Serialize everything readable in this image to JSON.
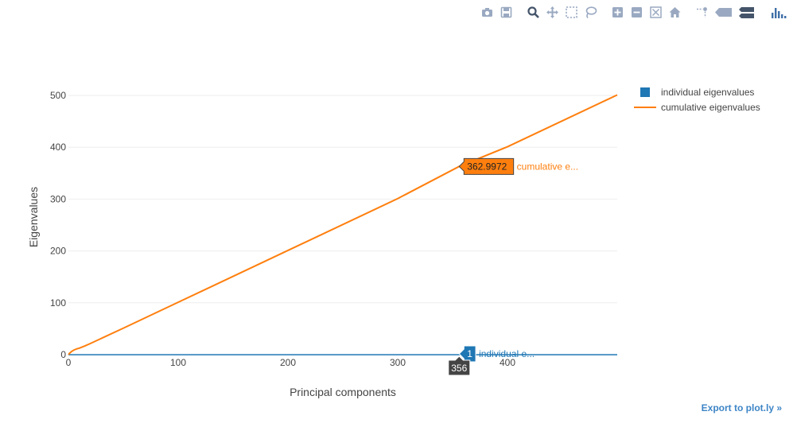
{
  "modebar": {
    "buttons": [
      {
        "name": "camera-icon",
        "group": 0
      },
      {
        "name": "save-icon",
        "group": 0
      },
      {
        "name": "zoom-icon",
        "group": 1
      },
      {
        "name": "pan-icon",
        "group": 1
      },
      {
        "name": "box-select-icon",
        "group": 1
      },
      {
        "name": "lasso-select-icon",
        "group": 1
      },
      {
        "name": "zoom-in-icon",
        "group": 2
      },
      {
        "name": "zoom-out-icon",
        "group": 2
      },
      {
        "name": "autoscale-icon",
        "group": 2
      },
      {
        "name": "home-icon",
        "group": 2
      },
      {
        "name": "spike-lines-icon",
        "group": 3
      },
      {
        "name": "hover-closest-icon",
        "group": 3
      },
      {
        "name": "hover-compare-icon",
        "group": 3
      },
      {
        "name": "plotly-logo-icon",
        "group": 4
      }
    ],
    "colors": {
      "default": "#9AA9C1",
      "active": "#44546A",
      "logo": "#3F6FA8"
    }
  },
  "export_link": "Export to plot.ly »",
  "chart_data": {
    "type": "line",
    "xlabel": "Principal components",
    "ylabel": "Eigenvalues",
    "xlim": [
      0,
      500
    ],
    "ylim": [
      0,
      500
    ],
    "xticks": [
      0,
      100,
      200,
      300,
      400
    ],
    "yticks": [
      0,
      100,
      200,
      300,
      400,
      500
    ],
    "grid": true,
    "legend_position": "top-right",
    "series": [
      {
        "name": "individual eigenvalues",
        "style": "bar",
        "color": "#1F77B4",
        "x_range": [
          0,
          500
        ],
        "value": 1
      },
      {
        "name": "cumulative eigenvalues",
        "style": "line",
        "color": "#FF7F0E",
        "x": [
          0,
          1,
          2,
          3,
          4,
          5,
          6,
          8,
          10,
          15,
          20,
          50,
          100,
          200,
          300,
          356,
          400,
          500
        ],
        "y": [
          0,
          2.5,
          4.5,
          6.2,
          7.6,
          8.8,
          9.8,
          11.4,
          12.6,
          16.8,
          21.5,
          51.0,
          101.0,
          201.0,
          301.0,
          362.9972,
          401.0,
          501.0
        ]
      }
    ],
    "hover": {
      "x_label": "356",
      "points": [
        {
          "series": 1,
          "x": 356,
          "y": 362.9972,
          "value_text": "362.9972",
          "name_text": "cumulative e..."
        },
        {
          "series": 0,
          "x": 356,
          "y": 1,
          "value_text": "1",
          "name_text": "individual e..."
        }
      ]
    }
  }
}
